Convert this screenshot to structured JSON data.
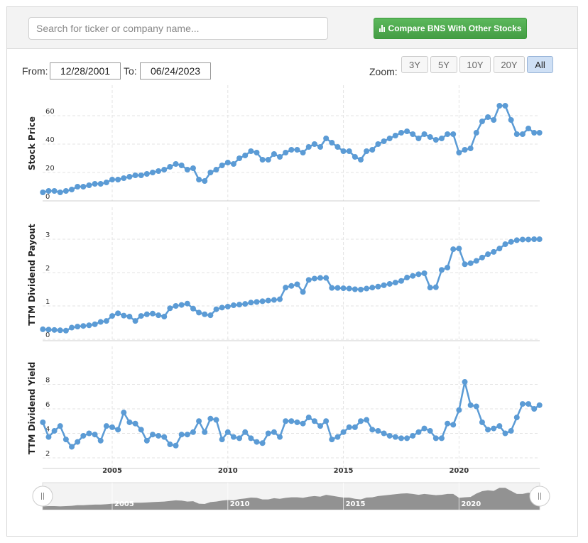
{
  "search": {
    "placeholder": "Search for ticker or company name..."
  },
  "compare_button": {
    "label": "Compare BNS With Other Stocks",
    "icon": "bar-chart-icon",
    "color": "#4cae4c"
  },
  "range": {
    "from_label": "From:",
    "from_value": "12/28/2001",
    "to_label": "To:",
    "to_value": "06/24/2023"
  },
  "zoom": {
    "label": "Zoom:",
    "options": [
      "3Y",
      "5Y",
      "10Y",
      "20Y",
      "All"
    ],
    "active": "All"
  },
  "colors": {
    "line": "#5b9bd5",
    "navigator_fill": "#808080"
  },
  "chart_data": [
    {
      "type": "line",
      "ylabel": "Stock Price",
      "yticks": [
        0,
        20,
        40,
        60
      ],
      "ylim": [
        0,
        70
      ],
      "x": [
        2002.0,
        2002.25,
        2002.5,
        2002.75,
        2003.0,
        2003.25,
        2003.5,
        2003.75,
        2004.0,
        2004.25,
        2004.5,
        2004.75,
        2005.0,
        2005.25,
        2005.5,
        2005.75,
        2006.0,
        2006.25,
        2006.5,
        2006.75,
        2007.0,
        2007.25,
        2007.5,
        2007.75,
        2008.0,
        2008.25,
        2008.5,
        2008.75,
        2009.0,
        2009.25,
        2009.5,
        2009.75,
        2010.0,
        2010.25,
        2010.5,
        2010.75,
        2011.0,
        2011.25,
        2011.5,
        2011.75,
        2012.0,
        2012.25,
        2012.5,
        2012.75,
        2013.0,
        2013.25,
        2013.5,
        2013.75,
        2014.0,
        2014.25,
        2014.5,
        2014.75,
        2015.0,
        2015.25,
        2015.5,
        2015.75,
        2016.0,
        2016.25,
        2016.5,
        2016.75,
        2017.0,
        2017.25,
        2017.5,
        2017.75,
        2018.0,
        2018.25,
        2018.5,
        2018.75,
        2019.0,
        2019.25,
        2019.5,
        2019.75,
        2020.0,
        2020.25,
        2020.5,
        2020.75,
        2021.0,
        2021.25,
        2021.5,
        2021.75,
        2022.0,
        2022.25,
        2022.5,
        2022.75,
        2023.0,
        2023.25,
        2023.48
      ],
      "values": [
        6,
        7,
        7,
        6,
        7,
        8,
        10,
        10,
        11,
        12,
        12,
        13,
        15,
        15,
        16,
        17,
        18,
        18,
        19,
        20,
        21,
        22,
        24,
        26,
        25,
        22,
        23,
        15,
        14,
        20,
        22,
        25,
        27,
        26,
        30,
        32,
        35,
        34,
        29,
        29,
        33,
        31,
        34,
        36,
        36,
        34,
        38,
        40,
        38,
        44,
        41,
        38,
        35,
        35,
        31,
        29,
        35,
        36,
        40,
        42,
        44,
        46,
        48,
        49,
        47,
        44,
        47,
        45,
        43,
        44,
        47,
        47,
        34,
        36,
        37,
        48,
        56,
        59,
        57,
        67,
        67,
        57,
        47,
        47,
        51,
        48,
        48
      ]
    },
    {
      "type": "line",
      "ylabel": "TTM Dividend Payout",
      "yticks": [
        0,
        1,
        2,
        3
      ],
      "ylim": [
        0,
        3.3
      ],
      "x": [
        2002.0,
        2002.25,
        2002.5,
        2002.75,
        2003.0,
        2003.25,
        2003.5,
        2003.75,
        2004.0,
        2004.25,
        2004.5,
        2004.75,
        2005.0,
        2005.25,
        2005.5,
        2005.75,
        2006.0,
        2006.25,
        2006.5,
        2006.75,
        2007.0,
        2007.25,
        2007.5,
        2007.75,
        2008.0,
        2008.25,
        2008.5,
        2008.75,
        2009.0,
        2009.25,
        2009.5,
        2009.75,
        2010.0,
        2010.25,
        2010.5,
        2010.75,
        2011.0,
        2011.25,
        2011.5,
        2011.75,
        2012.0,
        2012.25,
        2012.5,
        2012.75,
        2013.0,
        2013.25,
        2013.5,
        2013.75,
        2014.0,
        2014.25,
        2014.5,
        2014.75,
        2015.0,
        2015.25,
        2015.5,
        2015.75,
        2016.0,
        2016.25,
        2016.5,
        2016.75,
        2017.0,
        2017.25,
        2017.5,
        2017.75,
        2018.0,
        2018.25,
        2018.5,
        2018.75,
        2019.0,
        2019.25,
        2019.5,
        2019.75,
        2020.0,
        2020.25,
        2020.5,
        2020.75,
        2021.0,
        2021.25,
        2021.5,
        2021.75,
        2022.0,
        2022.25,
        2022.5,
        2022.75,
        2023.0,
        2023.25,
        2023.48
      ],
      "values": [
        0.3,
        0.29,
        0.28,
        0.27,
        0.26,
        0.35,
        0.38,
        0.4,
        0.42,
        0.45,
        0.52,
        0.55,
        0.7,
        0.78,
        0.71,
        0.68,
        0.55,
        0.7,
        0.75,
        0.77,
        0.72,
        0.68,
        0.93,
        1.0,
        1.03,
        1.07,
        0.92,
        0.8,
        0.75,
        0.72,
        0.9,
        0.95,
        0.98,
        1.02,
        1.04,
        1.06,
        1.1,
        1.12,
        1.14,
        1.16,
        1.18,
        1.2,
        1.55,
        1.6,
        1.65,
        1.42,
        1.78,
        1.82,
        1.84,
        1.84,
        1.54,
        1.54,
        1.53,
        1.52,
        1.5,
        1.49,
        1.52,
        1.55,
        1.58,
        1.62,
        1.66,
        1.7,
        1.75,
        1.85,
        1.9,
        1.95,
        1.98,
        1.55,
        1.56,
        2.08,
        2.15,
        2.7,
        2.72,
        2.25,
        2.28,
        2.35,
        2.45,
        2.55,
        2.62,
        2.72,
        2.85,
        2.92,
        2.97,
        2.99,
        2.99,
        3.0,
        3.0
      ]
    },
    {
      "type": "line",
      "ylabel": "TTM Dividend Yield",
      "yticks": [
        2,
        4,
        6,
        8
      ],
      "ylim": [
        1.8,
        9.3
      ],
      "xticks": [
        "2005",
        "2010",
        "2015",
        "2020"
      ],
      "x": [
        2002.0,
        2002.25,
        2002.5,
        2002.75,
        2003.0,
        2003.25,
        2003.5,
        2003.75,
        2004.0,
        2004.25,
        2004.5,
        2004.75,
        2005.0,
        2005.25,
        2005.5,
        2005.75,
        2006.0,
        2006.25,
        2006.5,
        2006.75,
        2007.0,
        2007.25,
        2007.5,
        2007.75,
        2008.0,
        2008.25,
        2008.5,
        2008.75,
        2009.0,
        2009.25,
        2009.5,
        2009.75,
        2010.0,
        2010.25,
        2010.5,
        2010.75,
        2011.0,
        2011.25,
        2011.5,
        2011.75,
        2012.0,
        2012.25,
        2012.5,
        2012.75,
        2013.0,
        2013.25,
        2013.5,
        2013.75,
        2014.0,
        2014.25,
        2014.5,
        2014.75,
        2015.0,
        2015.25,
        2015.5,
        2015.75,
        2016.0,
        2016.25,
        2016.5,
        2016.75,
        2017.0,
        2017.25,
        2017.5,
        2017.75,
        2018.0,
        2018.25,
        2018.5,
        2018.75,
        2019.0,
        2019.25,
        2019.5,
        2019.75,
        2020.0,
        2020.25,
        2020.5,
        2020.75,
        2021.0,
        2021.25,
        2021.5,
        2021.75,
        2022.0,
        2022.25,
        2022.5,
        2022.75,
        2023.0,
        2023.25,
        2023.48
      ],
      "values": [
        4.9,
        3.7,
        4.2,
        4.6,
        3.5,
        2.9,
        3.3,
        3.8,
        4.0,
        3.9,
        3.4,
        4.6,
        4.5,
        4.3,
        5.7,
        4.9,
        4.8,
        4.3,
        3.4,
        3.9,
        3.8,
        3.7,
        3.1,
        3.0,
        3.9,
        3.9,
        4.1,
        5.0,
        4.1,
        5.2,
        5.1,
        3.5,
        4.1,
        3.7,
        3.6,
        4.1,
        3.6,
        3.3,
        3.2,
        4.0,
        4.1,
        3.7,
        5.0,
        5.0,
        4.9,
        4.8,
        5.3,
        5.0,
        4.6,
        5.0,
        3.5,
        3.7,
        4.1,
        4.5,
        4.5,
        5.0,
        5.1,
        4.3,
        4.2,
        4.0,
        3.8,
        3.7,
        3.6,
        3.6,
        3.8,
        4.1,
        4.4,
        4.2,
        3.6,
        3.6,
        4.8,
        4.7,
        5.9,
        8.2,
        6.3,
        6.2,
        4.9,
        4.3,
        4.4,
        4.6,
        4.0,
        4.2,
        5.3,
        6.4,
        6.4,
        6.0,
        6.3
      ]
    }
  ],
  "navigator": {
    "labels": [
      "2005",
      "2010",
      "2015",
      "2020"
    ]
  }
}
